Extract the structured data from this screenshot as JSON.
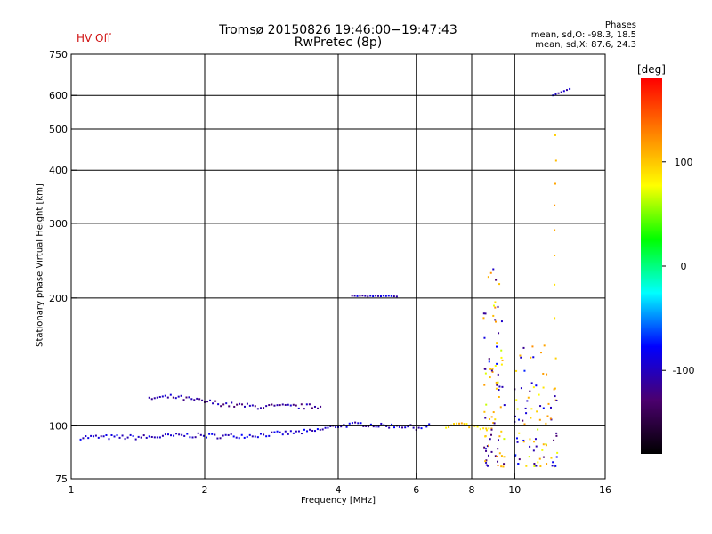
{
  "header": {
    "title_line1": "Tromsø 20150826 19:46:00−19:47:43",
    "title_line2": "RwPretec (8p)",
    "status": "HV Off",
    "stats_title": "Phases",
    "stats_o": "mean, sd,O: -98.3, 18.5",
    "stats_x": "mean, sd,X:  87.6, 24.3"
  },
  "colors": {
    "status": "#d01010",
    "grid": "#000000",
    "colorbar_scale": [
      "#000000",
      "#4b006e",
      "#0000ff",
      "#00ffff",
      "#00ff00",
      "#ffff00",
      "#ff8000",
      "#ff0000"
    ]
  },
  "chart_data": {
    "type": "scatter",
    "xlabel": "Frequency [MHz]",
    "ylabel": "Stationary phase Virtual Height [km]",
    "x_scale": "log",
    "y_scale": "log",
    "xlim": [
      1,
      16
    ],
    "ylim": [
      75,
      750
    ],
    "x_ticks": [
      1,
      2,
      4,
      6,
      8,
      10,
      16
    ],
    "y_ticks": [
      75,
      100,
      200,
      300,
      400,
      500,
      600,
      750
    ],
    "x_gridlines": [
      2,
      4,
      6,
      8,
      10
    ],
    "y_gridlines": [
      100,
      200,
      300,
      400,
      500,
      600
    ],
    "colorbar": {
      "label": "[deg]",
      "range": [
        -180,
        180
      ],
      "ticks": [
        100,
        0,
        -100
      ]
    },
    "series": [
      {
        "type": "trace",
        "phase": -95,
        "jitter_h": 1.2,
        "points": [
          [
            1.05,
            94
          ],
          [
            1.2,
            94
          ],
          [
            1.5,
            94
          ],
          [
            1.8,
            95
          ],
          [
            2.2,
            94.5
          ],
          [
            2.6,
            95
          ],
          [
            3.0,
            96
          ],
          [
            3.5,
            97
          ],
          [
            4.0,
            100
          ],
          [
            4.5,
            101
          ],
          [
            5.0,
            100
          ],
          [
            5.5,
            100
          ],
          [
            6.0,
            99
          ],
          [
            6.5,
            100
          ]
        ]
      },
      {
        "type": "trace",
        "phase": -110,
        "jitter_h": 1.5,
        "points": [
          [
            1.5,
            116
          ],
          [
            1.7,
            117
          ],
          [
            2.0,
            114
          ],
          [
            2.3,
            112
          ],
          [
            2.6,
            111
          ],
          [
            3.0,
            111
          ],
          [
            3.4,
            111
          ],
          [
            3.7,
            111
          ]
        ]
      },
      {
        "type": "trace",
        "phase": 95,
        "jitter_h": 1.2,
        "points": [
          [
            7.0,
            100
          ],
          [
            7.5,
            101
          ],
          [
            8.0,
            100
          ],
          [
            8.5,
            99
          ],
          [
            9.0,
            100
          ]
        ]
      },
      {
        "type": "trace",
        "phase": -100,
        "jitter_h": 0.5,
        "points": [
          [
            4.3,
            202
          ],
          [
            5.2,
            202
          ],
          [
            5.5,
            201
          ]
        ]
      },
      {
        "type": "spread",
        "freq": [
          8.5,
          9.5
        ],
        "height": [
          80,
          240
        ],
        "phase_mix": [
          -100,
          95
        ],
        "count": 90
      },
      {
        "type": "spread",
        "freq": [
          10.0,
          12.5
        ],
        "height": [
          80,
          160
        ],
        "phase_mix": [
          -100,
          95
        ],
        "count": 90
      },
      {
        "type": "trace",
        "phase": 100,
        "jitter_h": 4,
        "points": [
          [
            12.3,
            180
          ],
          [
            12.3,
            250
          ],
          [
            12.3,
            330
          ],
          [
            12.4,
            420
          ],
          [
            12.3,
            550
          ]
        ]
      },
      {
        "type": "trace",
        "phase": -100,
        "jitter_h": 0.2,
        "points": [
          [
            12.2,
            600
          ],
          [
            13.5,
            625
          ]
        ]
      }
    ]
  }
}
